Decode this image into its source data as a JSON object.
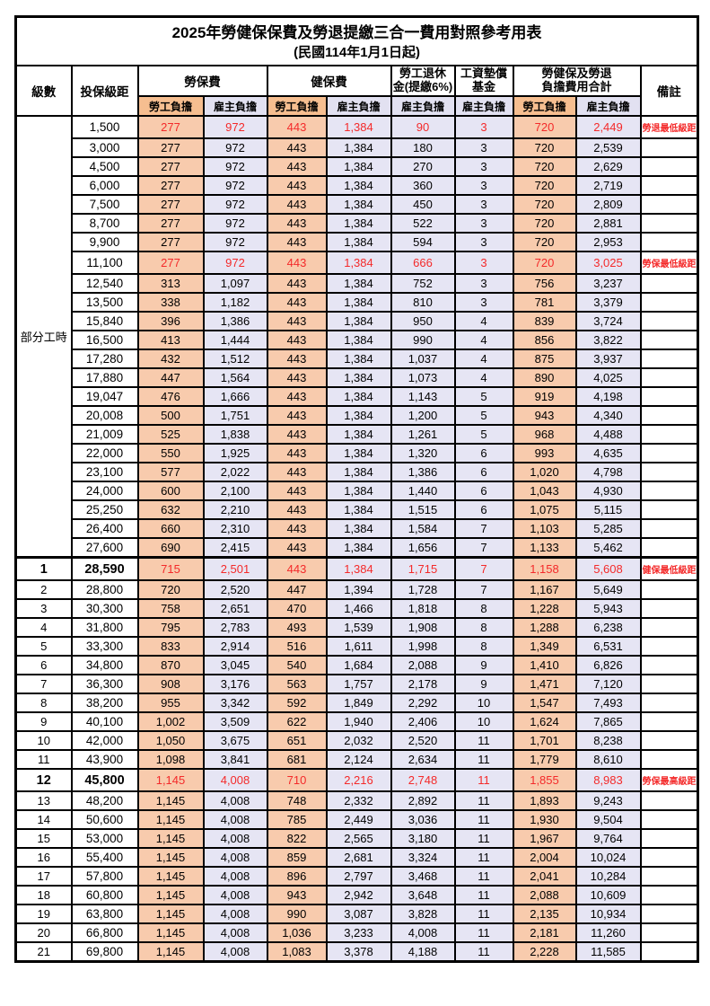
{
  "title": "2025年勞健保保費及勞退提繳三合一費用對照參考用表",
  "subtitle": "(民國114年1月1日起)",
  "colors": {
    "worker_column_bg": "#F8CBAD",
    "employer_column_bg": "#E6E5F4",
    "highlight_text": "#F42A2A",
    "remark_text": "#FF4545",
    "border": "#000000"
  },
  "header": {
    "level": "級數",
    "bracket": "投保級距",
    "labor_insurance": "勞保費",
    "health_insurance": "健保費",
    "pension_line1": "勞工退休",
    "pension_line2": "金(提繳6%)",
    "wage_fund_line1": "工資墊償",
    "wage_fund_line2": "基金",
    "total_line1": "勞健保及勞退",
    "total_line2": "負擔費用合計",
    "worker": "勞工負擔",
    "employer": "雇主負擔",
    "remark": "備註"
  },
  "table": {
    "part_time_label": "部分工時",
    "part_time_rowspan": 23,
    "column_order": [
      "level",
      "bracket",
      "labor_worker",
      "labor_employer",
      "health_worker",
      "health_employer",
      "pension_employer",
      "wage_fund_employer",
      "total_worker",
      "total_employer",
      "remark",
      "flags"
    ],
    "rows": [
      [
        "",
        "1,500",
        "277",
        "972",
        "443",
        "1,384",
        "90",
        "3",
        "720",
        "2,449",
        "勞退最低級距",
        "h"
      ],
      [
        "",
        "3,000",
        "277",
        "972",
        "443",
        "1,384",
        "180",
        "3",
        "720",
        "2,539",
        "",
        ""
      ],
      [
        "",
        "4,500",
        "277",
        "972",
        "443",
        "1,384",
        "270",
        "3",
        "720",
        "2,629",
        "",
        ""
      ],
      [
        "",
        "6,000",
        "277",
        "972",
        "443",
        "1,384",
        "360",
        "3",
        "720",
        "2,719",
        "",
        ""
      ],
      [
        "",
        "7,500",
        "277",
        "972",
        "443",
        "1,384",
        "450",
        "3",
        "720",
        "2,809",
        "",
        ""
      ],
      [
        "",
        "8,700",
        "277",
        "972",
        "443",
        "1,384",
        "522",
        "3",
        "720",
        "2,881",
        "",
        ""
      ],
      [
        "",
        "9,900",
        "277",
        "972",
        "443",
        "1,384",
        "594",
        "3",
        "720",
        "2,953",
        "",
        ""
      ],
      [
        "",
        "11,100",
        "277",
        "972",
        "443",
        "1,384",
        "666",
        "3",
        "720",
        "3,025",
        "勞保最低級距",
        "h"
      ],
      [
        "",
        "12,540",
        "313",
        "1,097",
        "443",
        "1,384",
        "752",
        "3",
        "756",
        "3,237",
        "",
        ""
      ],
      [
        "",
        "13,500",
        "338",
        "1,182",
        "443",
        "1,384",
        "810",
        "3",
        "781",
        "3,379",
        "",
        ""
      ],
      [
        "",
        "15,840",
        "396",
        "1,386",
        "443",
        "1,384",
        "950",
        "4",
        "839",
        "3,724",
        "",
        ""
      ],
      [
        "",
        "16,500",
        "413",
        "1,444",
        "443",
        "1,384",
        "990",
        "4",
        "856",
        "3,822",
        "",
        ""
      ],
      [
        "",
        "17,280",
        "432",
        "1,512",
        "443",
        "1,384",
        "1,037",
        "4",
        "875",
        "3,937",
        "",
        ""
      ],
      [
        "",
        "17,880",
        "447",
        "1,564",
        "443",
        "1,384",
        "1,073",
        "4",
        "890",
        "4,025",
        "",
        ""
      ],
      [
        "",
        "19,047",
        "476",
        "1,666",
        "443",
        "1,384",
        "1,143",
        "5",
        "919",
        "4,198",
        "",
        ""
      ],
      [
        "",
        "20,008",
        "500",
        "1,751",
        "443",
        "1,384",
        "1,200",
        "5",
        "943",
        "4,340",
        "",
        ""
      ],
      [
        "",
        "21,009",
        "525",
        "1,838",
        "443",
        "1,384",
        "1,261",
        "5",
        "968",
        "4,488",
        "",
        ""
      ],
      [
        "",
        "22,000",
        "550",
        "1,925",
        "443",
        "1,384",
        "1,320",
        "6",
        "993",
        "4,635",
        "",
        ""
      ],
      [
        "",
        "23,100",
        "577",
        "2,022",
        "443",
        "1,384",
        "1,386",
        "6",
        "1,020",
        "4,798",
        "",
        ""
      ],
      [
        "",
        "24,000",
        "600",
        "2,100",
        "443",
        "1,384",
        "1,440",
        "6",
        "1,043",
        "4,930",
        "",
        ""
      ],
      [
        "",
        "25,250",
        "632",
        "2,210",
        "443",
        "1,384",
        "1,515",
        "6",
        "1,075",
        "5,115",
        "",
        ""
      ],
      [
        "",
        "26,400",
        "660",
        "2,310",
        "443",
        "1,384",
        "1,584",
        "7",
        "1,103",
        "5,285",
        "",
        ""
      ],
      [
        "",
        "27,600",
        "690",
        "2,415",
        "443",
        "1,384",
        "1,656",
        "7",
        "1,133",
        "5,462",
        "",
        ""
      ],
      [
        "1",
        "28,590",
        "715",
        "2,501",
        "443",
        "1,384",
        "1,715",
        "7",
        "1,158",
        "5,608",
        "健保最低級距",
        "hbs"
      ],
      [
        "2",
        "28,800",
        "720",
        "2,520",
        "447",
        "1,394",
        "1,728",
        "7",
        "1,167",
        "5,649",
        "",
        ""
      ],
      [
        "3",
        "30,300",
        "758",
        "2,651",
        "470",
        "1,466",
        "1,818",
        "8",
        "1,228",
        "5,943",
        "",
        ""
      ],
      [
        "4",
        "31,800",
        "795",
        "2,783",
        "493",
        "1,539",
        "1,908",
        "8",
        "1,288",
        "6,238",
        "",
        ""
      ],
      [
        "5",
        "33,300",
        "833",
        "2,914",
        "516",
        "1,611",
        "1,998",
        "8",
        "1,349",
        "6,531",
        "",
        ""
      ],
      [
        "6",
        "34,800",
        "870",
        "3,045",
        "540",
        "1,684",
        "2,088",
        "9",
        "1,410",
        "6,826",
        "",
        ""
      ],
      [
        "7",
        "36,300",
        "908",
        "3,176",
        "563",
        "1,757",
        "2,178",
        "9",
        "1,471",
        "7,120",
        "",
        ""
      ],
      [
        "8",
        "38,200",
        "955",
        "3,342",
        "592",
        "1,849",
        "2,292",
        "10",
        "1,547",
        "7,493",
        "",
        ""
      ],
      [
        "9",
        "40,100",
        "1,002",
        "3,509",
        "622",
        "1,940",
        "2,406",
        "10",
        "1,624",
        "7,865",
        "",
        ""
      ],
      [
        "10",
        "42,000",
        "1,050",
        "3,675",
        "651",
        "2,032",
        "2,520",
        "11",
        "1,701",
        "8,238",
        "",
        ""
      ],
      [
        "11",
        "43,900",
        "1,098",
        "3,841",
        "681",
        "2,124",
        "2,634",
        "11",
        "1,779",
        "8,610",
        "",
        ""
      ],
      [
        "12",
        "45,800",
        "1,145",
        "4,008",
        "710",
        "2,216",
        "2,748",
        "11",
        "1,855",
        "8,983",
        "勞保最高級距",
        "hb"
      ],
      [
        "13",
        "48,200",
        "1,145",
        "4,008",
        "748",
        "2,332",
        "2,892",
        "11",
        "1,893",
        "9,243",
        "",
        ""
      ],
      [
        "14",
        "50,600",
        "1,145",
        "4,008",
        "785",
        "2,449",
        "3,036",
        "11",
        "1,930",
        "9,504",
        "",
        ""
      ],
      [
        "15",
        "53,000",
        "1,145",
        "4,008",
        "822",
        "2,565",
        "3,180",
        "11",
        "1,967",
        "9,764",
        "",
        ""
      ],
      [
        "16",
        "55,400",
        "1,145",
        "4,008",
        "859",
        "2,681",
        "3,324",
        "11",
        "2,004",
        "10,024",
        "",
        ""
      ],
      [
        "17",
        "57,800",
        "1,145",
        "4,008",
        "896",
        "2,797",
        "3,468",
        "11",
        "2,041",
        "10,284",
        "",
        ""
      ],
      [
        "18",
        "60,800",
        "1,145",
        "4,008",
        "943",
        "2,942",
        "3,648",
        "11",
        "2,088",
        "10,609",
        "",
        ""
      ],
      [
        "19",
        "63,800",
        "1,145",
        "4,008",
        "990",
        "3,087",
        "3,828",
        "11",
        "2,135",
        "10,934",
        "",
        ""
      ],
      [
        "20",
        "66,800",
        "1,145",
        "4,008",
        "1,036",
        "3,233",
        "4,008",
        "11",
        "2,181",
        "11,260",
        "",
        ""
      ],
      [
        "21",
        "69,800",
        "1,145",
        "4,008",
        "1,083",
        "3,378",
        "4,188",
        "11",
        "2,228",
        "11,585",
        "",
        ""
      ]
    ]
  }
}
